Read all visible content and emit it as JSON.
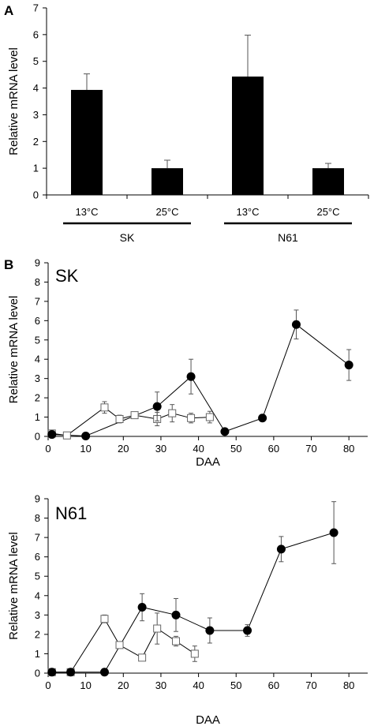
{
  "panels": {
    "a": "A",
    "b": "B"
  },
  "chart_data": [
    {
      "type": "bar",
      "panel": "A",
      "categories": [
        "13°C",
        "25°C",
        "13°C",
        "25°C"
      ],
      "groups": [
        {
          "label": "SK",
          "categories": [
            0,
            1
          ]
        },
        {
          "label": "N61",
          "categories": [
            2,
            3
          ]
        }
      ],
      "values": [
        3.93,
        1.0,
        4.43,
        1.0
      ],
      "errors": [
        0.6,
        0.3,
        1.55,
        0.18
      ],
      "ylabel": "Relative mRNA level",
      "ylim": [
        0,
        7
      ],
      "yticks": [
        0,
        1,
        2,
        3,
        4,
        5,
        6,
        7
      ],
      "grid": false,
      "colors": {
        "bar": "#000000"
      }
    },
    {
      "type": "line",
      "panel": "B",
      "inset_label": "SK",
      "xlabel": "DAA",
      "ylabel": "Relative mRNA level",
      "xlim": [
        0,
        85
      ],
      "ylim": [
        0,
        9
      ],
      "xticks": [
        0,
        10,
        20,
        30,
        40,
        50,
        60,
        70,
        80
      ],
      "yticks": [
        0,
        1,
        2,
        3,
        4,
        5,
        6,
        7,
        8,
        9
      ],
      "series": [
        {
          "marker": "open-square",
          "x": [
            1,
            5,
            15,
            19,
            23,
            29,
            33,
            38,
            43
          ],
          "y": [
            0.15,
            0.05,
            1.5,
            0.9,
            1.1,
            0.9,
            1.2,
            0.95,
            1.0
          ],
          "errors": [
            0.1,
            0.05,
            0.3,
            0.2,
            0.1,
            0.35,
            0.45,
            0.25,
            0.3
          ]
        },
        {
          "marker": "filled-circle",
          "x": [
            1,
            10,
            29,
            38,
            47,
            57,
            66,
            80
          ],
          "y": [
            0.1,
            0.02,
            1.55,
            3.1,
            0.25,
            0.95,
            5.8,
            3.7
          ],
          "errors": [
            0.0,
            0.0,
            0.75,
            0.9,
            0.0,
            0.0,
            0.75,
            0.8
          ]
        }
      ]
    },
    {
      "type": "line",
      "panel": "B",
      "inset_label": "N61",
      "xlabel": "DAA",
      "ylabel": "Relative mRNA level",
      "xlim": [
        0,
        85
      ],
      "ylim": [
        0,
        9
      ],
      "xticks": [
        0,
        10,
        20,
        30,
        40,
        50,
        60,
        70,
        80
      ],
      "yticks": [
        0,
        1,
        2,
        3,
        4,
        5,
        6,
        7,
        8,
        9
      ],
      "series": [
        {
          "marker": "open-square",
          "x": [
            1,
            6,
            15,
            19,
            25,
            29,
            34,
            39
          ],
          "y": [
            0.05,
            0.05,
            2.8,
            1.45,
            0.8,
            2.3,
            1.65,
            1.0
          ],
          "errors": [
            0.0,
            0.0,
            0.2,
            0.1,
            0.1,
            0.8,
            0.25,
            0.4
          ]
        },
        {
          "marker": "filled-circle",
          "x": [
            1,
            6,
            15,
            25,
            34,
            43,
            53,
            62,
            76
          ],
          "y": [
            0.05,
            0.05,
            0.05,
            3.4,
            3.0,
            2.2,
            2.2,
            6.4,
            7.25
          ],
          "errors": [
            0.0,
            0.0,
            0.0,
            0.7,
            0.85,
            0.65,
            0.3,
            0.65,
            1.6
          ]
        }
      ]
    }
  ]
}
